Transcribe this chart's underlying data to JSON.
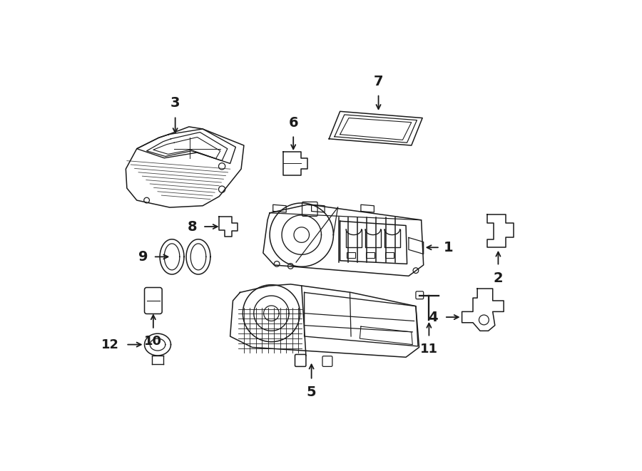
{
  "bg_color": "#ffffff",
  "line_color": "#1a1a1a",
  "fig_width": 9.0,
  "fig_height": 6.61,
  "lw": 1.1
}
